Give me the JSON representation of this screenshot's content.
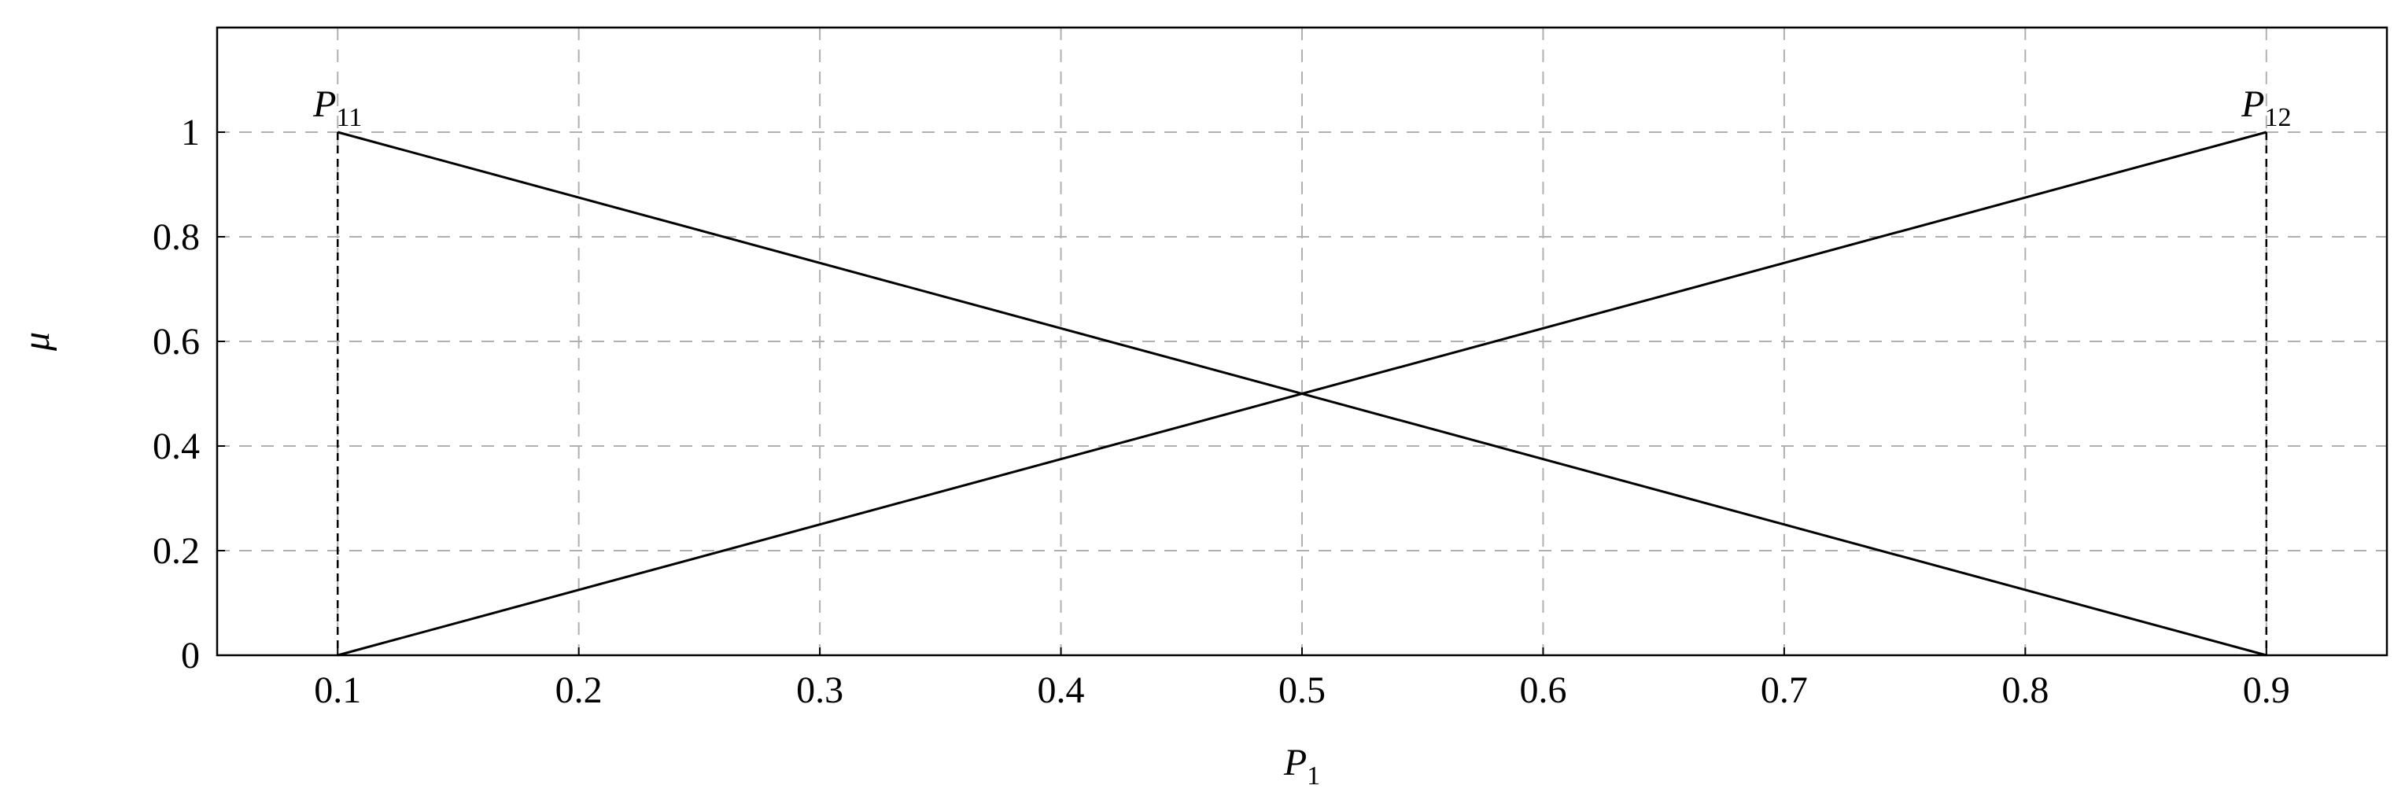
{
  "chart_data": {
    "type": "line",
    "x": [
      0.1,
      0.9
    ],
    "series": [
      {
        "color": "#000000",
        "values": [
          1,
          0
        ]
      },
      {
        "color": "#000000",
        "values": [
          0,
          1
        ]
      }
    ],
    "xlim": [
      0.05,
      0.95
    ],
    "xticks": [
      0.1,
      0.2,
      0.3,
      0.4,
      0.5,
      0.6,
      0.7,
      0.8,
      0.9
    ],
    "ylim": [
      0,
      1.2
    ],
    "yticks": [
      0,
      0.2,
      0.4,
      0.6,
      0.8,
      1
    ],
    "grid": true,
    "xlabel": {
      "text": "P",
      "subscript": "1"
    },
    "ylabel": "μ",
    "annotations": [
      {
        "text": "P",
        "subscript": "11",
        "x": 0.1,
        "y": 1
      },
      {
        "text": "P",
        "subscript": "12",
        "x": 0.9,
        "y": 1
      }
    ]
  }
}
